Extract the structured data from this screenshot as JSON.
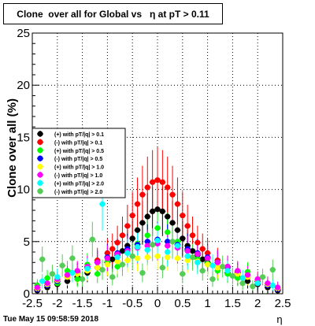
{
  "chart_data": {
    "type": "scatter",
    "title": "Clone  over all for Global vs   η at pT > 0.11",
    "xlabel": "η",
    "ylabel": "Clone  over all (%)",
    "xlim": [
      -2.5,
      2.5
    ],
    "ylim": [
      0,
      25
    ],
    "x_ticks": [
      "-2.5",
      "-2",
      "-1.5",
      "-1",
      "-0.5",
      "0",
      "0.5",
      "1",
      "1.5",
      "2",
      "2.5"
    ],
    "y_ticks": [
      "0",
      "5",
      "10",
      "15",
      "20",
      "25"
    ],
    "grid": true,
    "legend_position": "left-middle",
    "timestamp": "Tue May 15 09:58:59 2018",
    "series": [
      {
        "name": "(+) with pT/|q| > 0.1",
        "color": "#000000",
        "x": [
          -2.4,
          -2.2,
          -2.0,
          -1.8,
          -1.6,
          -1.4,
          -1.2,
          -1.0,
          -0.9,
          -0.8,
          -0.7,
          -0.6,
          -0.5,
          -0.4,
          -0.3,
          -0.2,
          -0.1,
          0.0,
          0.1,
          0.2,
          0.3,
          0.4,
          0.5,
          0.6,
          0.7,
          0.8,
          0.9,
          1.0,
          1.2,
          1.4,
          1.6,
          1.8,
          2.0,
          2.2,
          2.4
        ],
        "y": [
          0.3,
          0.6,
          0.9,
          1.2,
          1.6,
          2.0,
          2.5,
          3.0,
          3.3,
          3.7,
          4.1,
          4.6,
          5.3,
          6.1,
          6.8,
          7.4,
          7.9,
          8.1,
          7.9,
          7.4,
          6.8,
          6.1,
          5.3,
          4.6,
          4.1,
          3.7,
          3.3,
          3.0,
          2.5,
          2.0,
          1.6,
          1.2,
          0.9,
          0.6,
          0.3
        ]
      },
      {
        "name": "(-) with pT/|q| > 0.1",
        "color": "#ff0000",
        "x": [
          -2.4,
          -2.2,
          -2.0,
          -1.8,
          -1.6,
          -1.4,
          -1.2,
          -1.0,
          -0.9,
          -0.8,
          -0.7,
          -0.6,
          -0.5,
          -0.4,
          -0.3,
          -0.2,
          -0.1,
          0.0,
          0.1,
          0.2,
          0.3,
          0.4,
          0.5,
          0.6,
          0.7,
          0.8,
          0.9,
          1.0,
          1.2,
          1.4,
          1.6,
          1.8,
          2.0,
          2.2,
          2.4
        ],
        "y": [
          0.4,
          0.8,
          1.2,
          1.6,
          2.1,
          2.6,
          3.2,
          3.9,
          4.3,
          4.9,
          5.6,
          6.5,
          7.5,
          8.6,
          9.5,
          10.2,
          10.7,
          10.9,
          10.7,
          10.2,
          9.5,
          8.6,
          7.5,
          6.5,
          5.6,
          4.9,
          4.3,
          3.9,
          3.2,
          2.6,
          2.1,
          1.6,
          1.2,
          0.8,
          0.4
        ]
      },
      {
        "name": "(+) with pT/|q| > 0.5",
        "color": "#00ff00",
        "x": [
          -2.4,
          -2.2,
          -2.0,
          -1.8,
          -1.6,
          -1.4,
          -1.2,
          -1.0,
          -0.8,
          -0.6,
          -0.4,
          -0.2,
          0.0,
          0.2,
          0.4,
          0.6,
          0.8,
          1.0,
          1.2,
          1.4,
          1.6,
          1.8,
          2.0,
          2.2,
          2.4
        ],
        "y": [
          0.8,
          1.5,
          1.0,
          2.2,
          1.4,
          2.8,
          1.9,
          3.1,
          2.6,
          3.9,
          4.8,
          5.6,
          6.3,
          5.9,
          5.0,
          4.2,
          3.3,
          2.9,
          2.2,
          1.9,
          1.5,
          2.1,
          1.2,
          0.9,
          0.6
        ]
      },
      {
        "name": "(-) with pT/|q| > 0.5",
        "color": "#0000ff",
        "x": [
          -2.4,
          -2.2,
          -2.0,
          -1.8,
          -1.6,
          -1.4,
          -1.2,
          -1.0,
          -0.8,
          -0.6,
          -0.4,
          -0.2,
          0.0,
          0.2,
          0.4,
          0.6,
          0.8,
          1.0,
          1.2,
          1.4,
          1.6,
          1.8,
          2.0,
          2.2,
          2.4
        ],
        "y": [
          0.4,
          0.8,
          1.2,
          1.6,
          2.0,
          2.5,
          3.0,
          3.5,
          3.9,
          4.3,
          4.7,
          5.0,
          5.2,
          5.0,
          4.7,
          4.3,
          3.9,
          3.5,
          3.0,
          2.5,
          2.0,
          1.6,
          1.2,
          0.8,
          0.4
        ]
      },
      {
        "name": "(+) with pT/|q| > 1.0",
        "color": "#ffff00",
        "x": [
          -2.4,
          -2.2,
          -2.0,
          -1.8,
          -1.6,
          -1.4,
          -1.2,
          -1.0,
          -0.8,
          -0.6,
          -0.4,
          -0.2,
          0.0,
          0.2,
          0.4,
          0.6,
          0.8,
          1.0,
          1.2,
          1.4,
          1.6,
          1.8,
          2.0,
          2.2,
          2.4
        ],
        "y": [
          0.5,
          0.9,
          1.3,
          1.6,
          1.9,
          2.2,
          2.5,
          2.8,
          3.1,
          3.2,
          3.4,
          3.5,
          3.6,
          3.5,
          3.4,
          3.2,
          3.1,
          2.8,
          2.5,
          2.2,
          1.9,
          1.6,
          1.3,
          0.9,
          0.5
        ]
      },
      {
        "name": "(-) with pT/|q| > 1.0",
        "color": "#ff00ff",
        "x": [
          -2.4,
          -2.2,
          -2.0,
          -1.8,
          -1.6,
          -1.4,
          -1.2,
          -1.0,
          -0.8,
          -0.6,
          -0.4,
          -0.2,
          0.0,
          0.2,
          0.4,
          0.6,
          0.8,
          1.0,
          1.2,
          1.4,
          1.6,
          1.8,
          2.0,
          2.2,
          2.4
        ],
        "y": [
          0.6,
          1.0,
          1.4,
          1.8,
          2.2,
          2.6,
          3.0,
          3.4,
          3.8,
          4.1,
          4.4,
          4.6,
          4.8,
          4.6,
          4.4,
          4.1,
          3.8,
          3.4,
          3.0,
          2.6,
          2.2,
          1.8,
          1.4,
          1.0,
          0.6
        ]
      },
      {
        "name": "(+) with pT/|q| > 2.0",
        "color": "#00ffff",
        "x": [
          -2.3,
          -2.0,
          -1.7,
          -1.4,
          -1.1,
          -0.8,
          -0.6,
          -0.4,
          -0.2,
          0.0,
          0.2,
          0.4,
          0.6,
          0.8,
          1.1,
          1.4,
          1.7,
          2.0,
          2.3
        ],
        "y": [
          1.2,
          1.6,
          2.0,
          2.4,
          8.6,
          3.5,
          3.9,
          4.5,
          4.2,
          5.1,
          4.0,
          4.6,
          3.6,
          3.0,
          2.7,
          2.2,
          1.5,
          1.0,
          0.8
        ]
      },
      {
        "name": "(-) with pT/|q| > 2.0",
        "color": "#55cc55",
        "x": [
          -2.3,
          -2.1,
          -1.9,
          -1.7,
          -1.5,
          -1.3,
          -1.1,
          -0.9,
          -0.7,
          -0.5,
          -0.3,
          -0.1,
          0.1,
          0.3,
          0.5,
          0.7,
          0.9,
          1.1,
          1.3,
          1.5,
          1.7,
          1.9,
          2.1,
          2.3
        ],
        "y": [
          3.3,
          1.9,
          2.7,
          3.4,
          1.4,
          5.2,
          2.3,
          1.6,
          2.8,
          3.6,
          2.0,
          4.7,
          2.5,
          5.0,
          1.9,
          3.5,
          2.2,
          1.4,
          2.6,
          1.7,
          1.0,
          0.7,
          1.6,
          2.3
        ]
      }
    ]
  }
}
